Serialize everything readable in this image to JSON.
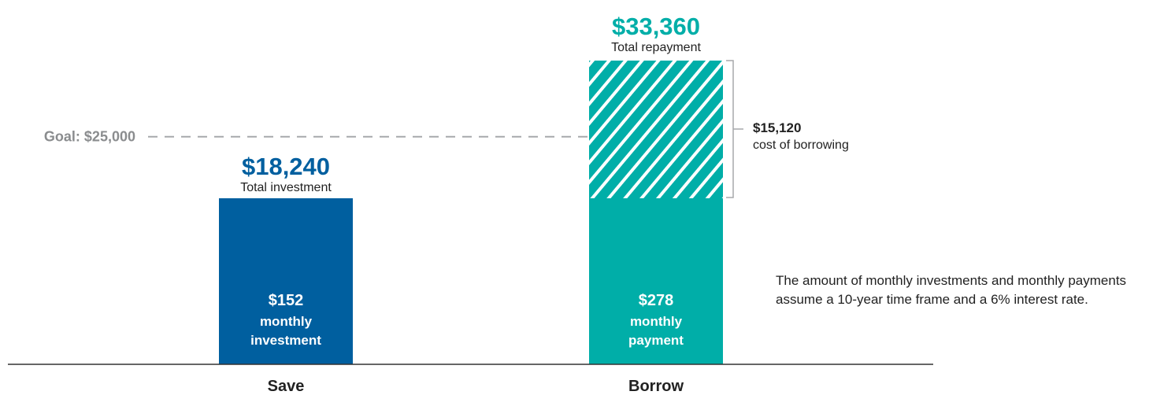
{
  "colors": {
    "save": "#005f9f",
    "borrow": "#00aea8",
    "goal_line": "#a7a9ac",
    "text": "#222222",
    "axis": "#333333"
  },
  "chart_data": {
    "type": "bar",
    "categories": [
      "Save",
      "Borrow"
    ],
    "values": [
      18240,
      33360
    ],
    "ylim": [
      0,
      34500
    ],
    "grid": false,
    "title": "",
    "xlabel": "",
    "ylabel": "",
    "goal": {
      "label": "Goal: $25,000",
      "value": 25000
    },
    "bars": [
      {
        "category": "Save",
        "value": 18240,
        "value_label": "$18,240",
        "caption": "Total investment",
        "inner_amount": "$152",
        "inner_line1": "monthly",
        "inner_line2": "investment",
        "color": "#005f9f"
      },
      {
        "category": "Borrow",
        "value": 33360,
        "value_label": "$33,360",
        "caption": "Total repayment",
        "inner_amount": "$278",
        "inner_line1": "monthly",
        "inner_line2": "payment",
        "color": "#00aea8",
        "hatched_from": 18240
      }
    ],
    "annotation": {
      "value": 15120,
      "amount": "$15,120",
      "label": "cost of borrowing",
      "from": 18240,
      "to": 33360
    }
  },
  "note": "The amount of monthly investments and monthly payments assume a 10-year time frame and a 6% interest rate."
}
